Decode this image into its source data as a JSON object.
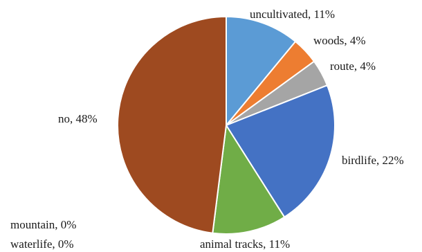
{
  "chart_data": {
    "type": "pie",
    "title": "",
    "slices": [
      {
        "label": "uncultivated, 11%",
        "value": 11,
        "color": "#5b9bd5"
      },
      {
        "label": "woods, 4%",
        "value": 4,
        "color": "#ed7d31"
      },
      {
        "label": "route, 4%",
        "value": 4,
        "color": "#a5a5a5"
      },
      {
        "label": "birdlife, 22%",
        "value": 22,
        "color": "#4472c4"
      },
      {
        "label": "animal tracks, 11%",
        "value": 11,
        "color": "#70ad47"
      },
      {
        "label": "waterlife, 0%",
        "value": 0,
        "color": "#264478"
      },
      {
        "label": "mountain, 0%",
        "value": 0,
        "color": "#9e480e"
      },
      {
        "label": "no, 48%",
        "value": 48,
        "color": "#9e4a20"
      }
    ],
    "start_angle_deg": 0,
    "direction": "clockwise",
    "legend": "none",
    "labels": "outside"
  }
}
